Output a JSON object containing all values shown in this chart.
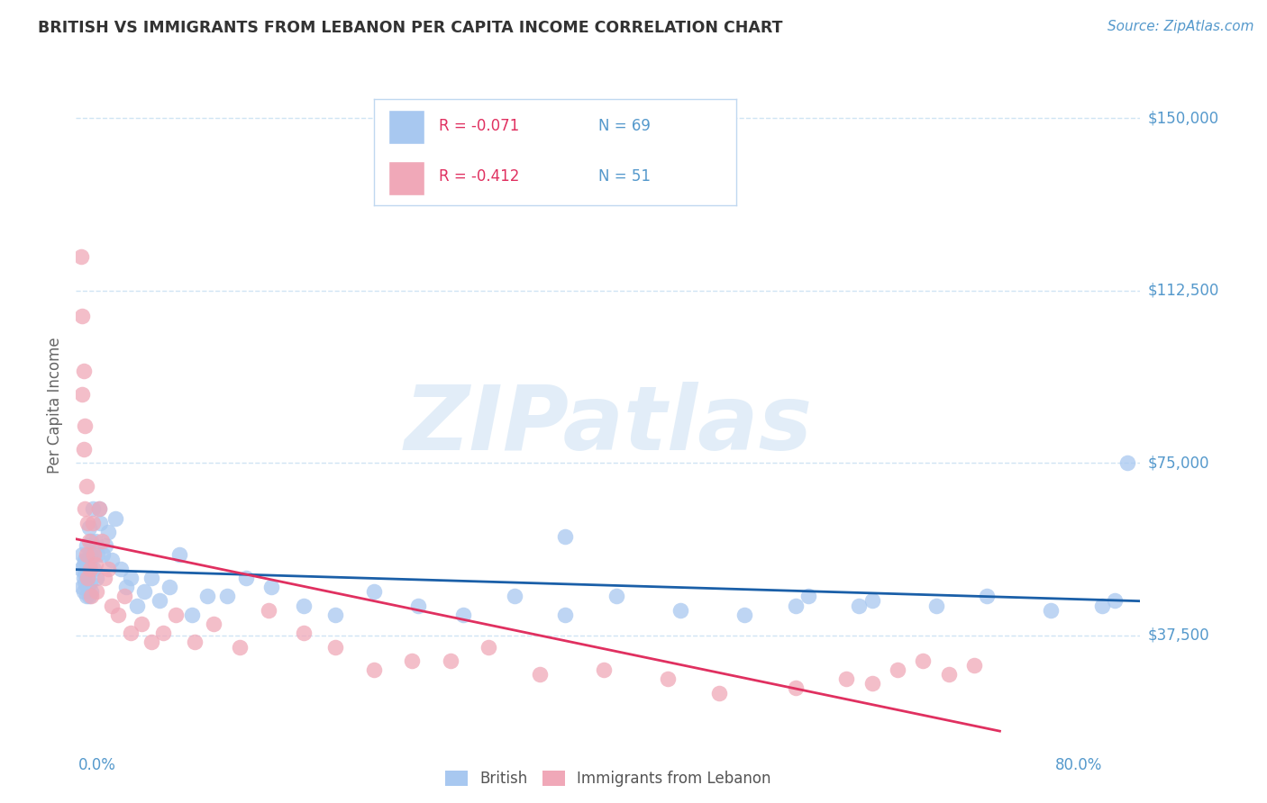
{
  "title": "BRITISH VS IMMIGRANTS FROM LEBANON PER CAPITA INCOME CORRELATION CHART",
  "source": "Source: ZipAtlas.com",
  "ylabel": "Per Capita Income",
  "ytick_labels": [
    "$37,500",
    "$75,000",
    "$112,500",
    "$150,000"
  ],
  "ytick_values": [
    37500,
    75000,
    112500,
    150000
  ],
  "ymin": 15000,
  "ymax": 160000,
  "xmin": -0.003,
  "xmax": 0.83,
  "watermark": "ZIPatlas",
  "legend_british_r": "-0.071",
  "legend_british_n": "69",
  "legend_lebanon_r": "-0.412",
  "legend_lebanon_n": "51",
  "british_color": "#a8c8f0",
  "lebanon_color": "#f0a8b8",
  "british_line_color": "#1a5fa8",
  "lebanon_line_color": "#e03060",
  "title_color": "#333333",
  "axis_label_color": "#5599cc",
  "grid_color": "#d0e4f4",
  "legend_border_color": "#c0d8f0",
  "british_x": [
    0.001,
    0.002,
    0.002,
    0.003,
    0.003,
    0.003,
    0.004,
    0.004,
    0.004,
    0.005,
    0.005,
    0.005,
    0.006,
    0.006,
    0.006,
    0.007,
    0.007,
    0.007,
    0.008,
    0.008,
    0.009,
    0.009,
    0.01,
    0.011,
    0.012,
    0.013,
    0.014,
    0.015,
    0.016,
    0.018,
    0.02,
    0.022,
    0.025,
    0.028,
    0.032,
    0.036,
    0.04,
    0.045,
    0.05,
    0.056,
    0.062,
    0.07,
    0.078,
    0.088,
    0.1,
    0.115,
    0.13,
    0.15,
    0.175,
    0.2,
    0.23,
    0.265,
    0.3,
    0.34,
    0.38,
    0.42,
    0.47,
    0.52,
    0.57,
    0.62,
    0.67,
    0.71,
    0.76,
    0.8,
    0.81,
    0.82,
    0.38,
    0.56,
    0.61
  ],
  "british_y": [
    52000,
    48000,
    55000,
    50000,
    47000,
    53000,
    51000,
    49000,
    54000,
    46000,
    52000,
    57000,
    50000,
    48000,
    54000,
    53000,
    46000,
    61000,
    55000,
    49000,
    58000,
    47000,
    65000,
    52000,
    58000,
    50000,
    55000,
    65000,
    62000,
    55000,
    57000,
    60000,
    54000,
    63000,
    52000,
    48000,
    50000,
    44000,
    47000,
    50000,
    45000,
    48000,
    55000,
    42000,
    46000,
    46000,
    50000,
    48000,
    44000,
    42000,
    47000,
    44000,
    42000,
    46000,
    42000,
    46000,
    43000,
    42000,
    46000,
    45000,
    44000,
    46000,
    43000,
    44000,
    45000,
    75000,
    59000,
    44000,
    44000
  ],
  "lebanon_x": [
    0.001,
    0.002,
    0.002,
    0.003,
    0.003,
    0.004,
    0.004,
    0.005,
    0.005,
    0.006,
    0.006,
    0.007,
    0.008,
    0.009,
    0.01,
    0.011,
    0.012,
    0.013,
    0.015,
    0.017,
    0.019,
    0.022,
    0.025,
    0.03,
    0.035,
    0.04,
    0.048,
    0.056,
    0.065,
    0.075,
    0.09,
    0.105,
    0.125,
    0.148,
    0.175,
    0.2,
    0.23,
    0.26,
    0.29,
    0.32,
    0.36,
    0.41,
    0.46,
    0.5,
    0.56,
    0.6,
    0.62,
    0.64,
    0.66,
    0.68,
    0.7
  ],
  "lebanon_y": [
    120000,
    107000,
    90000,
    95000,
    78000,
    83000,
    65000,
    70000,
    55000,
    62000,
    50000,
    58000,
    52000,
    46000,
    62000,
    55000,
    53000,
    47000,
    65000,
    58000,
    50000,
    52000,
    44000,
    42000,
    46000,
    38000,
    40000,
    36000,
    38000,
    42000,
    36000,
    40000,
    35000,
    43000,
    38000,
    35000,
    30000,
    32000,
    32000,
    35000,
    29000,
    30000,
    28000,
    25000,
    26000,
    28000,
    27000,
    30000,
    32000,
    29000,
    31000
  ]
}
